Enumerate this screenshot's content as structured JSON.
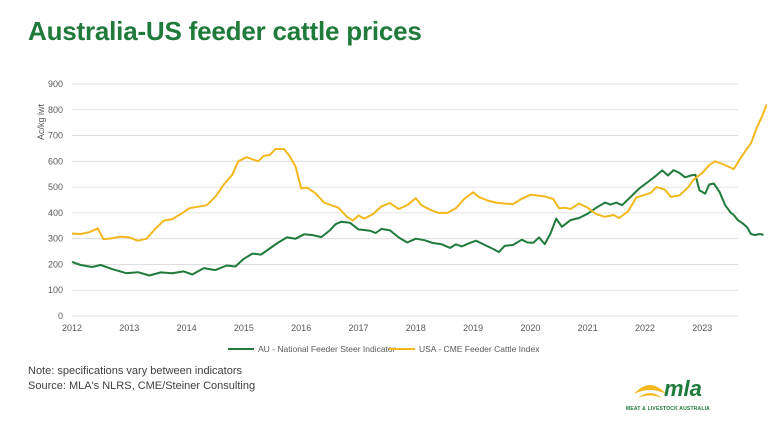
{
  "title": "Australia-US feeder cattle prices",
  "note_line1": "Note: specifications vary between indicators",
  "note_line2": "Source: MLA's NLRS, CME/Steiner Consulting",
  "logo": {
    "text": "mla",
    "subtitle": "MEAT & LIVESTOCK AUSTRALIA"
  },
  "colors": {
    "title": "#1f7a3b",
    "au": "#1f7a3b",
    "usa": "#f2b81e",
    "grid": "#d9d9d9",
    "axis_text": "#595959"
  },
  "chart_data": {
    "type": "line",
    "ylabel": "Ac/kg lwt",
    "ylim": [
      0,
      900
    ],
    "yticks": [
      0,
      100,
      200,
      300,
      400,
      500,
      600,
      700,
      800,
      900
    ],
    "xlim": [
      2012,
      2023.6
    ],
    "xticks": [
      "2012",
      "2013",
      "2014",
      "2015",
      "2016",
      "2017",
      "2018",
      "2019",
      "2020",
      "2021",
      "2022",
      "2023"
    ],
    "grid": "horizontal",
    "legend_position": "bottom",
    "series": [
      {
        "name": "AU - National Feeder Steer Indicator",
        "color": "#1f7a3b",
        "points": [
          [
            2012.0,
            210
          ],
          [
            2012.15,
            198
          ],
          [
            2012.35,
            190
          ],
          [
            2012.5,
            198
          ],
          [
            2012.7,
            182
          ],
          [
            2012.95,
            166
          ],
          [
            2013.15,
            170
          ],
          [
            2013.35,
            157
          ],
          [
            2013.55,
            169
          ],
          [
            2013.75,
            166
          ],
          [
            2013.95,
            173
          ],
          [
            2014.1,
            161
          ],
          [
            2014.3,
            186
          ],
          [
            2014.5,
            178
          ],
          [
            2014.7,
            196
          ],
          [
            2014.85,
            192
          ],
          [
            2015.0,
            222
          ],
          [
            2015.15,
            242
          ],
          [
            2015.3,
            238
          ],
          [
            2015.45,
            262
          ],
          [
            2015.6,
            285
          ],
          [
            2015.75,
            305
          ],
          [
            2015.9,
            300
          ],
          [
            2016.05,
            317
          ],
          [
            2016.2,
            314
          ],
          [
            2016.35,
            306
          ],
          [
            2016.5,
            332
          ],
          [
            2016.6,
            356
          ],
          [
            2016.7,
            366
          ],
          [
            2016.85,
            362
          ],
          [
            2017.0,
            336
          ],
          [
            2017.2,
            331
          ],
          [
            2017.3,
            322
          ],
          [
            2017.4,
            338
          ],
          [
            2017.55,
            332
          ],
          [
            2017.7,
            305
          ],
          [
            2017.85,
            285
          ],
          [
            2018.0,
            300
          ],
          [
            2018.15,
            294
          ],
          [
            2018.3,
            283
          ],
          [
            2018.45,
            278
          ],
          [
            2018.6,
            264
          ],
          [
            2018.7,
            278
          ],
          [
            2018.8,
            270
          ],
          [
            2018.95,
            284
          ],
          [
            2019.05,
            292
          ],
          [
            2019.2,
            276
          ],
          [
            2019.35,
            260
          ],
          [
            2019.45,
            248
          ],
          [
            2019.55,
            272
          ],
          [
            2019.7,
            276
          ],
          [
            2019.85,
            296
          ],
          [
            2019.95,
            285
          ],
          [
            2020.05,
            284
          ],
          [
            2020.15,
            305
          ],
          [
            2020.25,
            279
          ],
          [
            2020.35,
            320
          ],
          [
            2020.45,
            378
          ],
          [
            2020.55,
            346
          ],
          [
            2020.7,
            372
          ],
          [
            2020.85,
            380
          ],
          [
            2021.0,
            397
          ],
          [
            2021.15,
            420
          ],
          [
            2021.3,
            440
          ],
          [
            2021.4,
            432
          ],
          [
            2021.5,
            440
          ],
          [
            2021.6,
            430
          ],
          [
            2021.75,
            462
          ],
          [
            2021.9,
            495
          ],
          [
            2022.05,
            520
          ],
          [
            2022.2,
            546
          ],
          [
            2022.3,
            565
          ],
          [
            2022.4,
            545
          ],
          [
            2022.5,
            566
          ],
          [
            2022.6,
            555
          ],
          [
            2022.7,
            538
          ],
          [
            2022.8,
            545
          ],
          [
            2022.88,
            548
          ],
          [
            2022.95,
            488
          ],
          [
            2023.05,
            475
          ],
          [
            2023.12,
            510
          ],
          [
            2023.2,
            514
          ],
          [
            2023.3,
            482
          ],
          [
            2023.4,
            430
          ],
          [
            2023.5,
            400
          ],
          [
            2023.55,
            392
          ],
          [
            2023.62,
            372
          ],
          [
            2023.7,
            360
          ],
          [
            2023.78,
            345
          ],
          [
            2023.85,
            318
          ],
          [
            2023.92,
            314
          ],
          [
            2024.0,
            318
          ],
          [
            2024.07,
            315
          ]
        ]
      },
      {
        "name": "USA - CME Feeder Cattle Index",
        "color": "#f2b81e",
        "points": [
          [
            2012.0,
            320
          ],
          [
            2012.15,
            318
          ],
          [
            2012.3,
            325
          ],
          [
            2012.45,
            340
          ],
          [
            2012.55,
            298
          ],
          [
            2012.7,
            302
          ],
          [
            2012.85,
            308
          ],
          [
            2013.0,
            305
          ],
          [
            2013.15,
            292
          ],
          [
            2013.3,
            300
          ],
          [
            2013.45,
            337
          ],
          [
            2013.6,
            370
          ],
          [
            2013.75,
            376
          ],
          [
            2013.9,
            396
          ],
          [
            2014.05,
            418
          ],
          [
            2014.2,
            424
          ],
          [
            2014.35,
            430
          ],
          [
            2014.5,
            462
          ],
          [
            2014.65,
            510
          ],
          [
            2014.8,
            548
          ],
          [
            2014.9,
            600
          ],
          [
            2015.05,
            616
          ],
          [
            2015.15,
            608
          ],
          [
            2015.25,
            600
          ],
          [
            2015.35,
            622
          ],
          [
            2015.45,
            624
          ],
          [
            2015.55,
            648
          ],
          [
            2015.7,
            648
          ],
          [
            2015.8,
            620
          ],
          [
            2015.9,
            580
          ],
          [
            2016.0,
            495
          ],
          [
            2016.1,
            498
          ],
          [
            2016.25,
            476
          ],
          [
            2016.4,
            440
          ],
          [
            2016.55,
            428
          ],
          [
            2016.65,
            420
          ],
          [
            2016.8,
            385
          ],
          [
            2016.9,
            370
          ],
          [
            2017.0,
            390
          ],
          [
            2017.1,
            378
          ],
          [
            2017.25,
            395
          ],
          [
            2017.4,
            425
          ],
          [
            2017.55,
            438
          ],
          [
            2017.7,
            415
          ],
          [
            2017.85,
            430
          ],
          [
            2018.0,
            457
          ],
          [
            2018.1,
            430
          ],
          [
            2018.25,
            412
          ],
          [
            2018.4,
            400
          ],
          [
            2018.55,
            400
          ],
          [
            2018.7,
            418
          ],
          [
            2018.85,
            455
          ],
          [
            2019.0,
            480
          ],
          [
            2019.1,
            462
          ],
          [
            2019.25,
            448
          ],
          [
            2019.4,
            440
          ],
          [
            2019.55,
            436
          ],
          [
            2019.7,
            434
          ],
          [
            2019.85,
            455
          ],
          [
            2020.0,
            470
          ],
          [
            2020.1,
            468
          ],
          [
            2020.25,
            464
          ],
          [
            2020.4,
            454
          ],
          [
            2020.5,
            418
          ],
          [
            2020.6,
            420
          ],
          [
            2020.7,
            415
          ],
          [
            2020.85,
            436
          ],
          [
            2021.0,
            420
          ],
          [
            2021.15,
            395
          ],
          [
            2021.3,
            385
          ],
          [
            2021.45,
            392
          ],
          [
            2021.55,
            380
          ],
          [
            2021.7,
            405
          ],
          [
            2021.85,
            460
          ],
          [
            2022.0,
            470
          ],
          [
            2022.1,
            478
          ],
          [
            2022.2,
            500
          ],
          [
            2022.35,
            490
          ],
          [
            2022.45,
            462
          ],
          [
            2022.6,
            468
          ],
          [
            2022.75,
            498
          ],
          [
            2022.85,
            530
          ],
          [
            2023.0,
            555
          ],
          [
            2023.12,
            585
          ],
          [
            2023.22,
            600
          ],
          [
            2023.35,
            590
          ],
          [
            2023.45,
            580
          ],
          [
            2023.55,
            570
          ],
          [
            2023.65,
            606
          ],
          [
            2023.75,
            640
          ],
          [
            2023.85,
            670
          ],
          [
            2023.95,
            730
          ],
          [
            2024.05,
            778
          ],
          [
            2024.12,
            820
          ]
        ]
      }
    ]
  }
}
